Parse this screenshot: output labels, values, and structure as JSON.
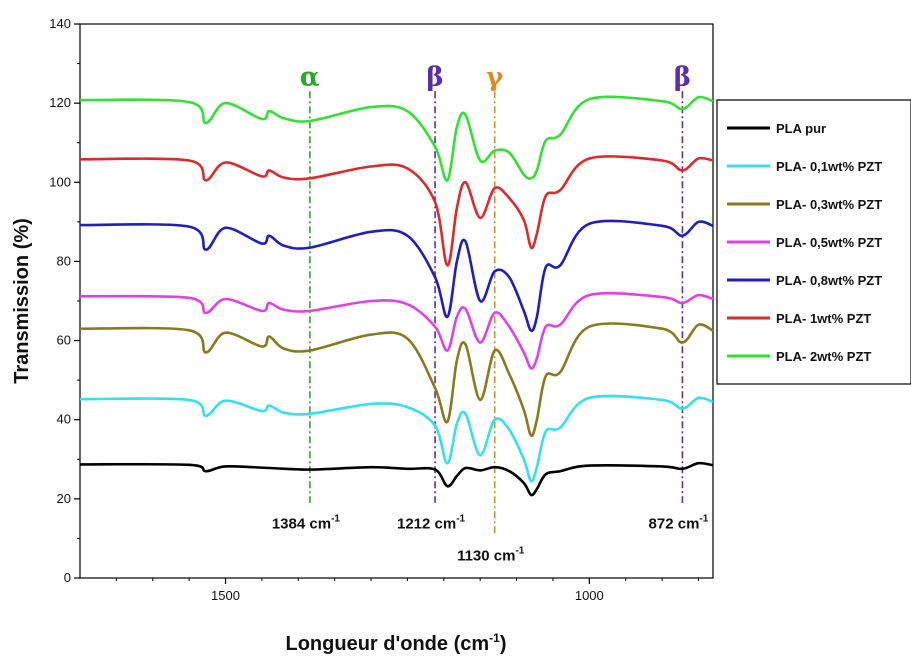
{
  "chart_data": {
    "type": "line",
    "xlabel": "Longueur d'onde (cm",
    "xlabel_sup": "-1",
    "xlabel_end": ")",
    "ylabel": "Transmission (%)",
    "xlim": [
      1700,
      830
    ],
    "ylim": [
      0,
      140
    ],
    "x_reversed": true,
    "xticks": [
      1500,
      1000
    ],
    "yticks": [
      0,
      20,
      40,
      60,
      80,
      100,
      120,
      140
    ],
    "legend_position": "right",
    "grid": false,
    "series": [
      {
        "name": "PLA pur",
        "color": "#000000",
        "baseline": 28.7,
        "x": [
          1700,
          1550,
          1527,
          1500,
          1440,
          1384,
          1300,
          1250,
          1212,
          1195,
          1182,
          1170,
          1150,
          1130,
          1110,
          1090,
          1080,
          1072,
          1060,
          1040,
          1000,
          900,
          872,
          850,
          830
        ],
        "y": [
          28.7,
          28.6,
          27.0,
          28.2,
          27.8,
          27.4,
          28.0,
          27.6,
          27.4,
          23.2,
          25.8,
          27.8,
          27.2,
          28.0,
          27.0,
          24.0,
          21.0,
          22.5,
          26.2,
          27.0,
          28.4,
          28.2,
          27.6,
          29.0,
          28.5
        ]
      },
      {
        "name": "PLA- 0,1wt% PZT",
        "color": "#33e0f0",
        "baseline": 45.0,
        "x": [
          1700,
          1550,
          1527,
          1500,
          1450,
          1440,
          1420,
          1384,
          1300,
          1250,
          1212,
          1195,
          1182,
          1170,
          1150,
          1130,
          1110,
          1090,
          1080,
          1072,
          1060,
          1040,
          1000,
          900,
          872,
          850,
          830
        ],
        "y": [
          45.2,
          45.0,
          41.0,
          44.8,
          42.2,
          43.6,
          41.8,
          41.5,
          44.0,
          43.2,
          38.5,
          29.0,
          39.0,
          41.5,
          31.0,
          40.0,
          37.5,
          30.0,
          24.5,
          28.0,
          37.0,
          38.0,
          45.5,
          45.0,
          42.8,
          45.5,
          44.5
        ]
      },
      {
        "name": "PLA- 0,3wt% PZT",
        "color": "#8a7a1e",
        "baseline": 62.5,
        "x": [
          1700,
          1550,
          1527,
          1500,
          1450,
          1440,
          1420,
          1384,
          1300,
          1250,
          1212,
          1195,
          1182,
          1170,
          1150,
          1130,
          1110,
          1090,
          1080,
          1072,
          1060,
          1040,
          1000,
          900,
          872,
          850,
          830
        ],
        "y": [
          63.0,
          62.6,
          57.0,
          62.0,
          58.5,
          61.0,
          58.0,
          57.5,
          61.5,
          60.5,
          48.0,
          39.5,
          55.0,
          59.0,
          45.0,
          57.5,
          51.5,
          42.5,
          36.0,
          40.0,
          51.0,
          52.0,
          63.5,
          63.0,
          59.5,
          64.0,
          62.5
        ]
      },
      {
        "name": "PLA- 0,5wt% PZT",
        "color": "#e040e8",
        "baseline": 70.5,
        "x": [
          1700,
          1550,
          1527,
          1500,
          1450,
          1440,
          1420,
          1384,
          1300,
          1250,
          1212,
          1195,
          1182,
          1170,
          1150,
          1130,
          1110,
          1090,
          1080,
          1072,
          1060,
          1040,
          1000,
          900,
          872,
          850,
          830
        ],
        "y": [
          71.2,
          70.8,
          67.0,
          70.5,
          67.5,
          69.5,
          67.8,
          67.5,
          70.0,
          69.2,
          63.5,
          57.5,
          66.0,
          68.0,
          59.5,
          67.0,
          63.5,
          57.0,
          53.0,
          55.5,
          63.5,
          64.0,
          71.5,
          71.0,
          69.5,
          71.5,
          70.5
        ]
      },
      {
        "name": "PLA- 0,8wt% PZT",
        "color": "#1f1fc0",
        "baseline": 89.0,
        "x": [
          1700,
          1550,
          1527,
          1500,
          1450,
          1440,
          1420,
          1384,
          1300,
          1250,
          1212,
          1195,
          1182,
          1170,
          1150,
          1130,
          1110,
          1090,
          1080,
          1072,
          1060,
          1040,
          1000,
          900,
          872,
          850,
          830
        ],
        "y": [
          89.2,
          88.8,
          83.0,
          88.5,
          84.5,
          86.5,
          84.0,
          83.5,
          87.5,
          86.5,
          76.0,
          66.0,
          80.0,
          85.0,
          70.0,
          77.5,
          76.0,
          67.5,
          62.5,
          66.0,
          78.5,
          79.0,
          89.5,
          89.0,
          86.5,
          90.0,
          89.0
        ]
      },
      {
        "name": "PLA- 1wt% PZT",
        "color": "#dd2a2a",
        "baseline": 105.5,
        "x": [
          1700,
          1550,
          1527,
          1500,
          1450,
          1440,
          1420,
          1384,
          1300,
          1250,
          1212,
          1195,
          1182,
          1170,
          1150,
          1130,
          1110,
          1090,
          1080,
          1072,
          1060,
          1040,
          1000,
          900,
          872,
          850,
          830
        ],
        "y": [
          105.8,
          105.5,
          100.5,
          105.0,
          101.5,
          103.0,
          101.2,
          101.0,
          104.0,
          103.5,
          95.0,
          79.0,
          93.5,
          100.0,
          91.0,
          98.5,
          96.0,
          90.5,
          83.5,
          87.0,
          96.5,
          98.0,
          106.0,
          105.5,
          103.0,
          106.0,
          105.5
        ]
      },
      {
        "name": "PLA- 2wt% PZT",
        "color": "#33e033",
        "baseline": 120.5,
        "x": [
          1700,
          1550,
          1527,
          1500,
          1450,
          1440,
          1420,
          1384,
          1300,
          1250,
          1212,
          1195,
          1182,
          1170,
          1150,
          1130,
          1110,
          1090,
          1080,
          1072,
          1060,
          1040,
          1000,
          900,
          872,
          850,
          830
        ],
        "y": [
          120.8,
          120.3,
          115.0,
          120.0,
          116.0,
          118.0,
          116.2,
          115.5,
          119.0,
          118.0,
          109.0,
          100.5,
          114.0,
          117.0,
          105.5,
          108.0,
          107.5,
          102.0,
          101.0,
          103.0,
          110.5,
          112.0,
          121.0,
          120.5,
          118.5,
          121.5,
          120.5
        ]
      }
    ],
    "annotations": [
      {
        "x": 1384,
        "symbol": "α",
        "color": "#2aa82a",
        "label": "1384 cm",
        "sup": "-1",
        "label_y": 14
      },
      {
        "x": 1212,
        "symbol": "β",
        "color": "#5b2bb0",
        "label": "1212 cm",
        "sup": "-1",
        "label_y": 14
      },
      {
        "x": 1130,
        "symbol": "γ",
        "color": "#e08a20",
        "label": "1130 cm",
        "sup": "-1",
        "label_y": 6
      },
      {
        "x": 872,
        "symbol": "β",
        "color": "#5b2bb0",
        "label": "872 cm",
        "sup": "-1",
        "label_y": 14
      }
    ]
  }
}
